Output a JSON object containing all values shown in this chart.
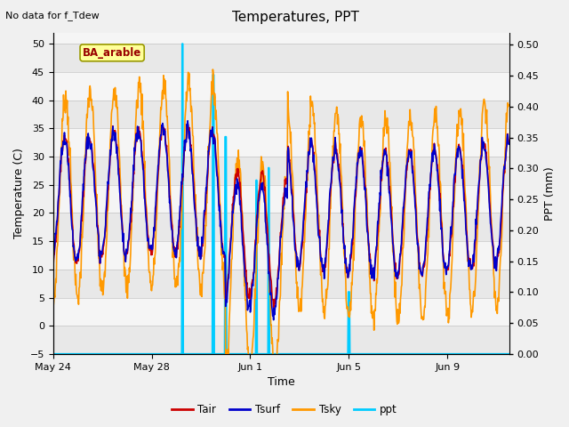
{
  "title": "Temperatures, PPT",
  "subtitle": "No data for f_Tdew",
  "xlabel": "Time",
  "ylabel_left": "Temperature (C)",
  "ylabel_right": "PPT (mm)",
  "site_label": "BA_arable",
  "ylim_left": [
    -5,
    52
  ],
  "ylim_right": [
    0.0,
    0.52
  ],
  "yticks_left": [
    -5,
    0,
    5,
    10,
    15,
    20,
    25,
    30,
    35,
    40,
    45,
    50
  ],
  "yticks_right": [
    0.0,
    0.05,
    0.1,
    0.15,
    0.2,
    0.25,
    0.3,
    0.35,
    0.4,
    0.45,
    0.5
  ],
  "xtick_labels": [
    "May 24",
    "May 28",
    "Jun 1",
    "Jun 5",
    "Jun 9"
  ],
  "xtick_days_offset": [
    0,
    4,
    8,
    12,
    16
  ],
  "color_tair": "#cc0000",
  "color_tsurf": "#0000cc",
  "color_tsky": "#ff9900",
  "color_ppt": "#00ccff",
  "linewidth_temp": 1.2,
  "linewidth_ppt": 1.5,
  "band_colors": [
    "#e8e8e8",
    "#f5f5f5"
  ],
  "fig_bg": "#f0f0f0",
  "title_fontsize": 11,
  "label_fontsize": 9,
  "tick_fontsize": 8,
  "site_box_facecolor": "#ffff99",
  "site_box_edgecolor": "#999900",
  "site_text_color": "#990000"
}
